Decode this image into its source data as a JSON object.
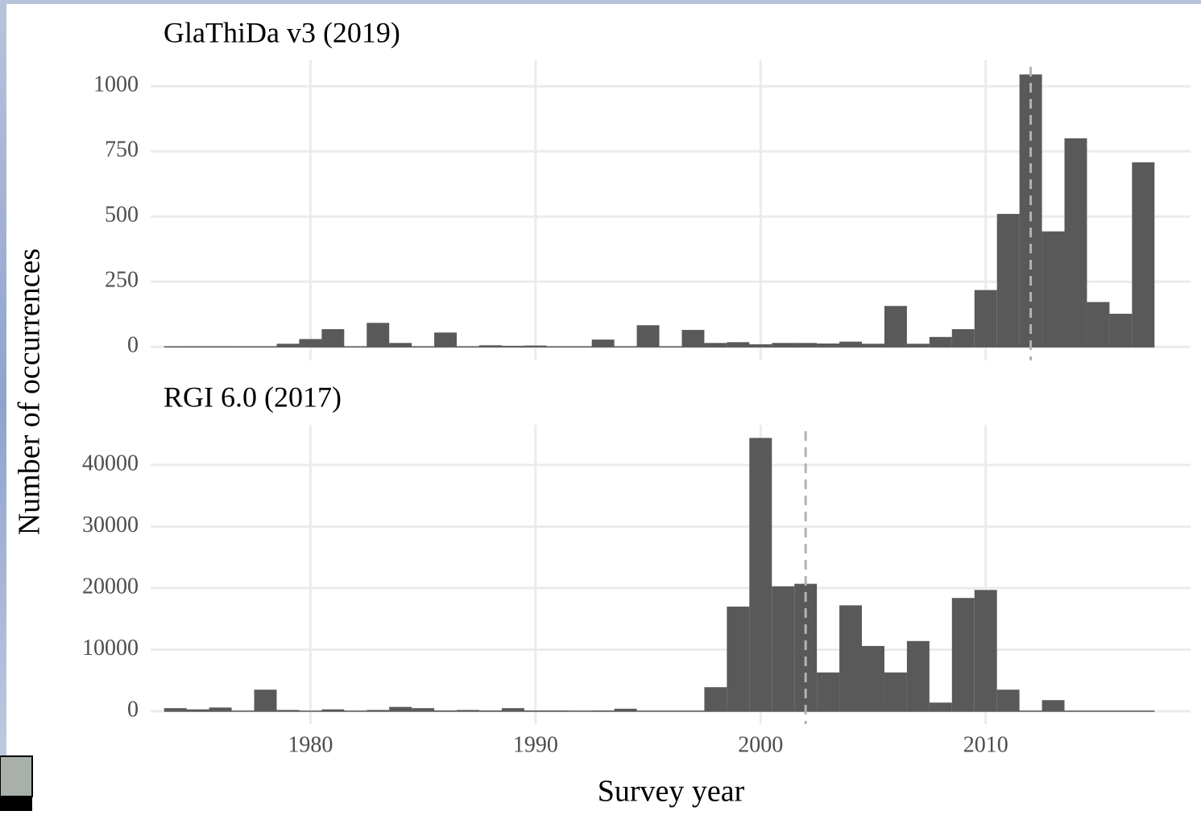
{
  "chart_data": [
    {
      "type": "histogram",
      "title": "GlaThiDa v3 (2019)",
      "color": "#595959",
      "bins": [
        1973.5,
        1974.5,
        1975.5,
        1976.5,
        1977.5,
        1978.5,
        1979.5,
        1980.5,
        1981.5,
        1982.5,
        1983.5,
        1984.5,
        1985.5,
        1986.5,
        1987.5,
        1988.5,
        1989.5,
        1990.5,
        1991.5,
        1992.5,
        1993.5,
        1994.5,
        1995.5,
        1996.5,
        1997.5,
        1998.5,
        1999.5,
        2000.5,
        2001.5,
        2002.5,
        2003.5,
        2004.5,
        2005.5,
        2006.5,
        2007.5,
        2008.5,
        2009.5,
        2010.5,
        2011.5,
        2012.5,
        2013.5,
        2014.5,
        2015.5,
        2016.5,
        2017.5
      ],
      "values": [
        0,
        2,
        1,
        0,
        0,
        12,
        30,
        68,
        0,
        92,
        15,
        0,
        55,
        0,
        6,
        4,
        5,
        0,
        0,
        28,
        0,
        83,
        0,
        65,
        15,
        18,
        10,
        15,
        15,
        13,
        20,
        12,
        157,
        12,
        38,
        68,
        218,
        510,
        1045,
        443,
        800,
        172,
        127,
        708
      ],
      "xlim": [
        1972.9,
        2019.1
      ],
      "xticks": [
        1980,
        1990,
        2000,
        2010
      ],
      "ylim": [
        -52,
        1099
      ],
      "yticks": [
        0,
        250,
        500,
        750,
        1000
      ],
      "vline": 2012,
      "vline_color": "#b3b3b3",
      "grid": true
    },
    {
      "type": "histogram",
      "title": "RGI 6.0 (2017)",
      "color": "#595959",
      "bins": [
        1973.5,
        1974.5,
        1975.5,
        1976.5,
        1977.5,
        1978.5,
        1979.5,
        1980.5,
        1981.5,
        1982.5,
        1983.5,
        1984.5,
        1985.5,
        1986.5,
        1987.5,
        1988.5,
        1989.5,
        1990.5,
        1991.5,
        1992.5,
        1993.5,
        1994.5,
        1995.5,
        1996.5,
        1997.5,
        1998.5,
        1999.5,
        2000.5,
        2001.5,
        2002.5,
        2003.5,
        2004.5,
        2005.5,
        2006.5,
        2007.5,
        2008.5,
        2009.5,
        2010.5,
        2011.5,
        2012.5,
        2013.5,
        2014.5,
        2015.5,
        2016.5,
        2017.5
      ],
      "values": [
        500,
        300,
        600,
        0,
        3500,
        200,
        0,
        300,
        0,
        200,
        700,
        500,
        100,
        200,
        100,
        500,
        100,
        100,
        0,
        100,
        400,
        0,
        0,
        50,
        3900,
        17000,
        44400,
        20300,
        20700,
        6300,
        17200,
        10600,
        6300,
        11400,
        1400,
        18400,
        19700,
        3500,
        0,
        1800,
        0,
        0,
        0,
        0
      ],
      "xlim": [
        1972.9,
        2019.1
      ],
      "xticks": [
        1980,
        1990,
        2000,
        2010
      ],
      "ylim": [
        -2092,
        46536
      ],
      "yticks": [
        0,
        10000,
        20000,
        30000,
        40000
      ],
      "vline": 2002,
      "vline_color": "#b3b3b3",
      "grid": true
    }
  ],
  "x_label": "Survey year",
  "y_label": "Number of occurrences"
}
